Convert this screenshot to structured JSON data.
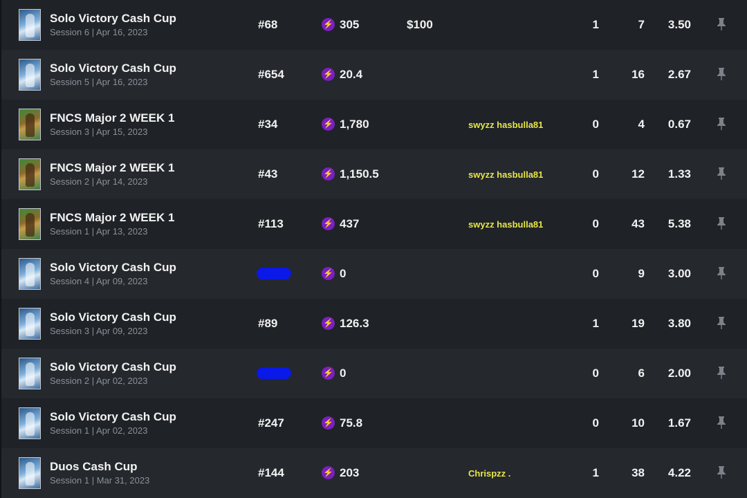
{
  "rows": [
    {
      "title": "Solo Victory Cash Cup",
      "subtitle": "Session 6 | Apr 16, 2023",
      "thumb": "solo",
      "rank": "#68",
      "points": "305",
      "prize": "$100",
      "team": "",
      "s1": "1",
      "s2": "7",
      "s3": "3.50"
    },
    {
      "title": "Solo Victory Cash Cup",
      "subtitle": "Session 5 | Apr 16, 2023",
      "thumb": "solo",
      "rank": "#654",
      "points": "20.4",
      "prize": "",
      "team": "",
      "s1": "1",
      "s2": "16",
      "s3": "2.67"
    },
    {
      "title": "FNCS Major 2 WEEK 1",
      "subtitle": "Session 3 | Apr 15, 2023",
      "thumb": "fncs",
      "rank": "#34",
      "points": "1,780",
      "prize": "",
      "team": "swyzz hasbulla81",
      "s1": "0",
      "s2": "4",
      "s3": "0.67"
    },
    {
      "title": "FNCS Major 2 WEEK 1",
      "subtitle": "Session 2 | Apr 14, 2023",
      "thumb": "fncs",
      "rank": "#43",
      "points": "1,150.5",
      "prize": "",
      "team": "swyzz hasbulla81",
      "s1": "0",
      "s2": "12",
      "s3": "1.33"
    },
    {
      "title": "FNCS Major 2 WEEK 1",
      "subtitle": "Session 1 | Apr 13, 2023",
      "thumb": "fncs",
      "rank": "#113",
      "points": "437",
      "prize": "",
      "team": "swyzz hasbulla81",
      "s1": "0",
      "s2": "43",
      "s3": "5.38"
    },
    {
      "title": "Solo Victory Cash Cup",
      "subtitle": "Session 4 | Apr 09, 2023",
      "thumb": "solo",
      "rank": "",
      "rank_hidden": true,
      "points": "0",
      "prize": "",
      "team": "",
      "s1": "0",
      "s2": "9",
      "s3": "3.00"
    },
    {
      "title": "Solo Victory Cash Cup",
      "subtitle": "Session 3 | Apr 09, 2023",
      "thumb": "solo",
      "rank": "#89",
      "points": "126.3",
      "prize": "",
      "team": "",
      "s1": "1",
      "s2": "19",
      "s3": "3.80"
    },
    {
      "title": "Solo Victory Cash Cup",
      "subtitle": "Session 2 | Apr 02, 2023",
      "thumb": "solo",
      "rank": "",
      "rank_hidden": true,
      "points": "0",
      "prize": "",
      "team": "",
      "s1": "0",
      "s2": "6",
      "s3": "2.00"
    },
    {
      "title": "Solo Victory Cash Cup",
      "subtitle": "Session 1 | Apr 02, 2023",
      "thumb": "solo",
      "rank": "#247",
      "points": "75.8",
      "prize": "",
      "team": "",
      "s1": "0",
      "s2": "10",
      "s3": "1.67"
    },
    {
      "title": "Duos Cash Cup",
      "subtitle": "Session 1 | Mar 31, 2023",
      "thumb": "solo",
      "rank": "#144",
      "points": "203",
      "prize": "",
      "team": "Chrispzz .",
      "s1": "1",
      "s2": "38",
      "s3": "4.22"
    }
  ],
  "icons": {
    "points": "lightning-bolt-icon",
    "pin": "pin-icon"
  },
  "colors": {
    "row_dark": "#1f2226",
    "row_light": "#25282d",
    "team_text": "#e7e64a",
    "bolt_bg": "#7a1fc0",
    "redaction": "#0a18e8"
  }
}
